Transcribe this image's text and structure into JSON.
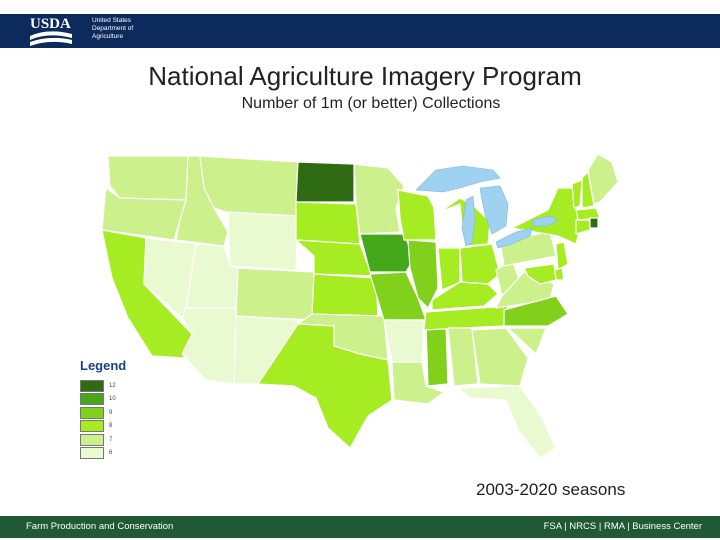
{
  "header": {
    "logo_text": "USDA",
    "agency_line1": "United States",
    "agency_line2": "Department of",
    "agency_line3": "Agriculture",
    "bg_color": "#0d2a5c"
  },
  "title": "National Agriculture Imagery Program",
  "subtitle": "Number of 1m (or better) Collections",
  "legend": {
    "title": "Legend",
    "items": [
      {
        "label": "12",
        "color": "#2e6b12"
      },
      {
        "label": "10",
        "color": "#45a81a"
      },
      {
        "label": "9",
        "color": "#80d01c"
      },
      {
        "label": "8",
        "color": "#a6ec22"
      },
      {
        "label": "7",
        "color": "#ccf08c"
      },
      {
        "label": "6",
        "color": "#eafad0"
      }
    ]
  },
  "seasons": "2003-2020 seasons",
  "footer": {
    "left": "Farm Production and Conservation",
    "right": "FSA | NRCS | RMA | Business Center",
    "bg_color": "#1f5a34"
  },
  "map": {
    "water_color": "#9fd2f0",
    "state_collections": {
      "WA": 7,
      "OR": 7,
      "CA": 8,
      "ID": 7,
      "NV": 6,
      "MT": 7,
      "WY": 6,
      "UT": 6,
      "AZ": 6,
      "CO": 7,
      "NM": 6,
      "ND": 12,
      "SD": 8,
      "NE": 8,
      "KS": 8,
      "OK": 7,
      "TX": 8,
      "MN": 7,
      "IA": 10,
      "MO": 9,
      "AR": 6,
      "LA": 7,
      "WI": 8,
      "IL": 9,
      "MS": 9,
      "MI": 8,
      "IN": 8,
      "KY": 8,
      "TN": 8,
      "AL": 7,
      "OH": 8,
      "WV": 7,
      "VA": 7,
      "NC": 9,
      "SC": 7,
      "GA": 7,
      "FL": 6,
      "PA": 7,
      "NY": 8,
      "VT": 8,
      "NH": 8,
      "ME": 7,
      "MA": 8,
      "CT": 8,
      "RI": 12,
      "NJ": 8,
      "DE": 8,
      "MD": 8
    }
  }
}
